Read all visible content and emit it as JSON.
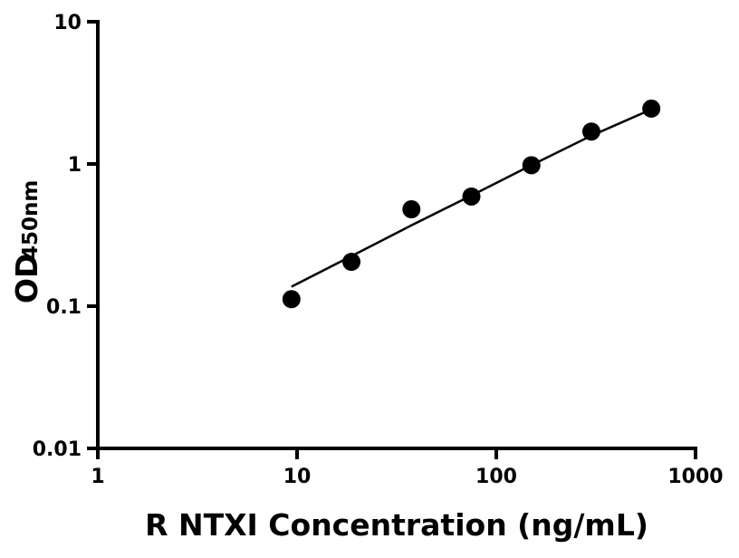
{
  "chart_data": {
    "type": "scatter",
    "title": "",
    "xlabel": "R NTXI Concentration (ng/mL)",
    "ylabel_main": "OD",
    "ylabel_sub": "450nm",
    "x_scale": "log",
    "y_scale": "log",
    "xlim": [
      1,
      1000
    ],
    "ylim": [
      0.01,
      10
    ],
    "x_ticks": [
      1,
      10,
      100,
      1000
    ],
    "x_tick_labels": [
      "1",
      "10",
      "100",
      "1000"
    ],
    "y_ticks": [
      0.01,
      0.1,
      1,
      10
    ],
    "y_tick_labels": [
      "0.01",
      "0.1",
      "1",
      "10"
    ],
    "grid": false,
    "points": {
      "x": [
        9.375,
        18.75,
        37.5,
        75,
        150,
        300,
        600
      ],
      "y": [
        0.112,
        0.205,
        0.48,
        0.59,
        0.98,
        1.69,
        2.45
      ]
    },
    "fit_line": {
      "x": [
        9.375,
        18.75,
        37.5,
        75,
        150,
        300,
        600
      ],
      "y": [
        0.137,
        0.225,
        0.37,
        0.6,
        0.98,
        1.58,
        2.42
      ]
    },
    "colors": {
      "points": "#000000",
      "line": "#000000"
    }
  }
}
